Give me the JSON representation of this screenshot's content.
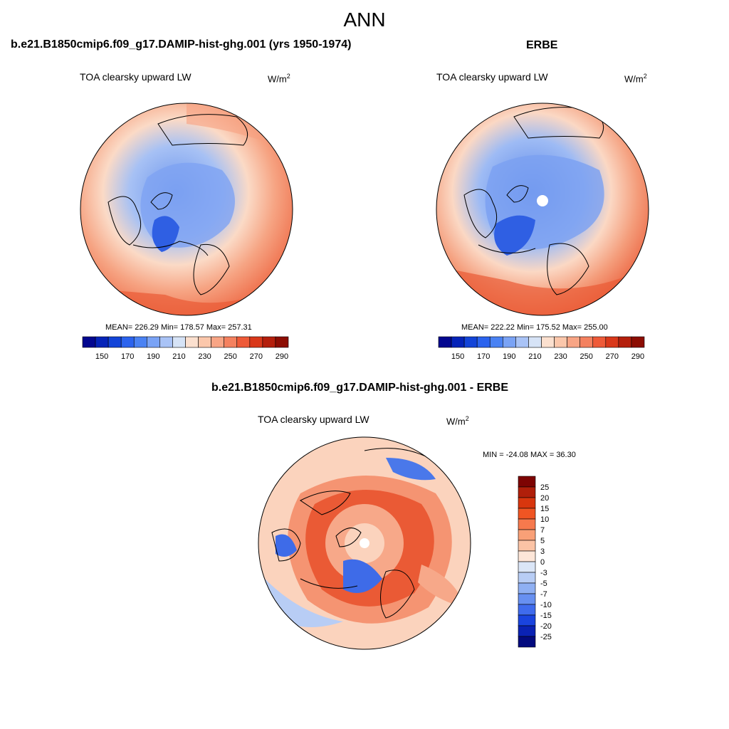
{
  "header": {
    "title": "ANN"
  },
  "panels": {
    "model": {
      "title": "b.e21.B1850cmip6.f09_g17.DAMIP-hist-ghg.001 (yrs 1950-1974)",
      "variable": "TOA clearsky upward LW",
      "units": "W/m",
      "units_sup": "2",
      "stats": "MEAN= 226.29  Min= 178.57  Max= 257.31"
    },
    "obs": {
      "title": "ERBE",
      "variable": "TOA clearsky upward LW",
      "units": "W/m",
      "units_sup": "2",
      "stats": "MEAN= 222.22  Min= 175.52  Max= 255.00"
    },
    "diff": {
      "title": "b.e21.B1850cmip6.f09_g17.DAMIP-hist-ghg.001 - ERBE",
      "variable": "TOA clearsky upward LW",
      "units": "W/m",
      "units_sup": "2",
      "stats": "MIN = -24.08 MAX =  36.30"
    }
  },
  "colorbars": {
    "abs": {
      "ticks": [
        "150",
        "170",
        "190",
        "210",
        "230",
        "250",
        "270",
        "290"
      ],
      "colors": [
        "#03078f",
        "#0523b8",
        "#1344d8",
        "#2b63ee",
        "#4a82f3",
        "#7aa3f5",
        "#a9c3f6",
        "#d6e3f6",
        "#fbe0cf",
        "#fbc7ab",
        "#f8a585",
        "#f4815f",
        "#ee5a38",
        "#d9381a",
        "#b41f0c",
        "#8c0d03"
      ]
    },
    "diff": {
      "labels": [
        "25",
        "20",
        "15",
        "10",
        "7",
        "5",
        "3",
        "0",
        "-3",
        "-5",
        "-7",
        "-10",
        "-15",
        "-20",
        "-25"
      ],
      "colors": [
        "#7d0403",
        "#b01f0a",
        "#d8360e",
        "#f05523",
        "#f6794d",
        "#f9a077",
        "#fbc3a5",
        "#fde6d8",
        "#dbe6f7",
        "#b8cdf5",
        "#8fb0f3",
        "#6790f1",
        "#3f6bed",
        "#1a44df",
        "#0a22b4",
        "#030a7e"
      ]
    }
  },
  "colors": {
    "land_outline": "#000000",
    "map_border": "#000000"
  }
}
